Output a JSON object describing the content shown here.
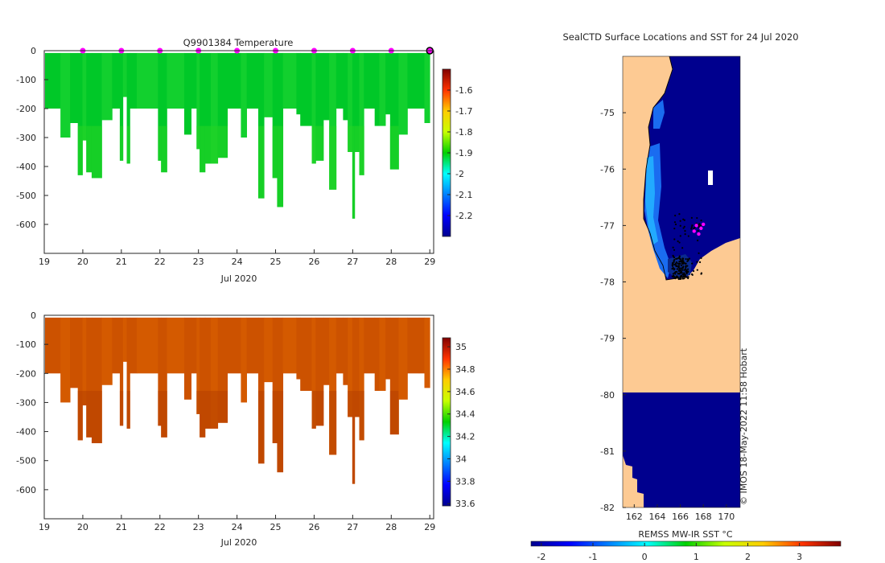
{
  "chart_data": [
    {
      "type": "heatmap",
      "title": "Q9901384  Temperature",
      "xlabel": "Jul 2020",
      "x_ticks": [
        "19",
        "20",
        "21",
        "22",
        "23",
        "24",
        "25",
        "26",
        "27",
        "28",
        "29"
      ],
      "xlim": [
        19,
        29.1
      ],
      "y_ticks": [
        "0",
        "-100",
        "-200",
        "-300",
        "-400",
        "-500",
        "-600"
      ],
      "ylim": [
        -700,
        0
      ],
      "colorbar_ticks": [
        "-1.6",
        "-1.7",
        "-1.8",
        "-1.9",
        "-2",
        "-2.1",
        "-2.2"
      ],
      "colorbar_range": [
        -2.3,
        -1.5
      ],
      "marker_days": [
        20,
        21,
        22,
        23,
        24,
        25,
        26,
        27,
        28
      ],
      "marker_color": "#ff00ff",
      "dominant_value": -1.92,
      "profile_colors": {
        "main": "#00c828",
        "alt": "#12d02e",
        "deep": "#24d324"
      }
    },
    {
      "type": "heatmap",
      "title": "",
      "xlabel": "Jul 2020",
      "x_ticks": [
        "19",
        "20",
        "21",
        "22",
        "23",
        "24",
        "25",
        "26",
        "27",
        "28",
        "29"
      ],
      "xlim": [
        19,
        29.1
      ],
      "y_ticks": [
        "0",
        "-100",
        "-200",
        "-300",
        "-400",
        "-500",
        "-600"
      ],
      "ylim": [
        -700,
        0
      ],
      "colorbar_ticks": [
        "35",
        "34.8",
        "34.6",
        "34.4",
        "34.2",
        "34",
        "33.8",
        "33.6"
      ],
      "colorbar_range": [
        33.58,
        35.08
      ],
      "dominant_value": 34.9,
      "profile_colors": {
        "main": "#cc5200",
        "alt": "#d45a00",
        "deep": "#b84200"
      }
    },
    {
      "type": "heatmap",
      "title": "SealCTD Surface Locations and SST for 24 Jul 2020",
      "xlabel": "REMSS MW-IR SST °C",
      "x_ticks": [
        "162",
        "164",
        "166",
        "168",
        "170"
      ],
      "xlim": [
        161,
        171.2
      ],
      "y_ticks": [
        "-75",
        "-76",
        "-77",
        "-78",
        "-79",
        "-80",
        "-81",
        "-82"
      ],
      "ylim": [
        -82,
        -74
      ],
      "colorbar_ticks": [
        "-2",
        "-1",
        "0",
        "1",
        "2",
        "3"
      ],
      "colorbar_range": [
        -2.2,
        3.8
      ],
      "land_color": "#fdca93",
      "sea_color": "#00008e",
      "footnote": "© IMOS 18-May-2022 11:58 Hobart"
    }
  ]
}
